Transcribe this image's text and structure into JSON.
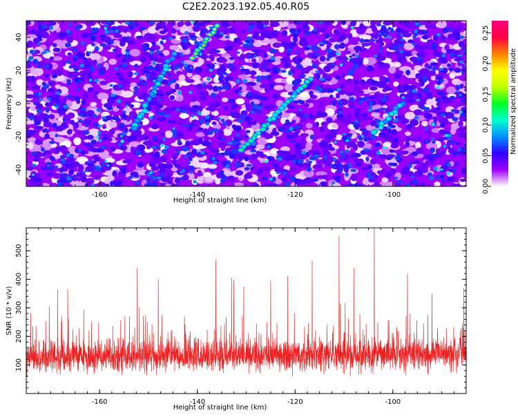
{
  "title": "C2E2.2023.192.05.40.R05",
  "chart_data": [
    {
      "type": "heatmap",
      "xlabel": "Height of straight line (km)",
      "ylabel": "Frequency (Hz)",
      "xlim": [
        -175,
        -85
      ],
      "ylim": [
        -50,
        50
      ],
      "xticks": [
        -160,
        -140,
        -120,
        -100
      ],
      "yticks": [
        -40,
        -20,
        0,
        20,
        40
      ],
      "colorbar": {
        "label": "Normalized spectral amplitude",
        "range": [
          0,
          0.27
        ],
        "ticks": [
          0.0,
          0.05,
          0.1,
          0.15,
          0.2,
          0.25
        ],
        "tick_labels": [
          "0.00",
          "0.05",
          "0.10",
          "0.15",
          "0.20",
          "0.25"
        ],
        "colormap": [
          "#ffffff",
          "#a000ff",
          "#3000ff",
          "#0090ff",
          "#00ffd0",
          "#00ff20",
          "#c0ff00",
          "#ffff00",
          "#ff8000",
          "#ff0040",
          "#ff0080"
        ]
      },
      "ridges": [
        {
          "x": [
            -145,
            -153
          ],
          "y": [
            30,
            -15
          ],
          "peak": 0.12
        },
        {
          "x": [
            -141,
            -136
          ],
          "y": [
            28,
            47
          ],
          "peak": 0.2
        },
        {
          "x": [
            -139,
            -139
          ],
          "y": [
            36,
            36
          ],
          "peak": 0.26
        },
        {
          "x": [
            -117,
            -131
          ],
          "y": [
            15,
            -28
          ],
          "peak": 0.13
        },
        {
          "x": [
            -98,
            -104
          ],
          "y": [
            0,
            -18
          ],
          "peak": 0.12
        },
        {
          "x": [
            -110,
            -100
          ],
          "y": [
            25,
            47
          ],
          "peak": 0.07
        },
        {
          "x": [
            -168,
            -160
          ],
          "y": [
            -47,
            -38
          ],
          "peak": 0.08
        }
      ]
    },
    {
      "type": "line",
      "xlabel": "Height of straight line (km)",
      "ylabel": "SNR (10 * v/v)",
      "xlim": [
        -175,
        -85
      ],
      "ylim": [
        0,
        580
      ],
      "xticks": [
        -160,
        -140,
        -120,
        -100
      ],
      "yticks": [
        100,
        200,
        300,
        400,
        500
      ],
      "color": "#ee2222",
      "peaks": [
        {
          "x": -170.3,
          "y": 305
        },
        {
          "x": -166.5,
          "y": 365
        },
        {
          "x": -152.3,
          "y": 440
        },
        {
          "x": -148.0,
          "y": 400
        },
        {
          "x": -136.2,
          "y": 470
        },
        {
          "x": -133.0,
          "y": 405
        },
        {
          "x": -130.5,
          "y": 375
        },
        {
          "x": -125.0,
          "y": 395
        },
        {
          "x": -121.5,
          "y": 410
        },
        {
          "x": -116.5,
          "y": 465
        },
        {
          "x": -111.0,
          "y": 550
        },
        {
          "x": -108.0,
          "y": 440
        },
        {
          "x": -103.8,
          "y": 580
        },
        {
          "x": -97.0,
          "y": 420
        },
        {
          "x": -92.0,
          "y": 350
        },
        {
          "x": -85.5,
          "y": 370
        }
      ]
    }
  ]
}
